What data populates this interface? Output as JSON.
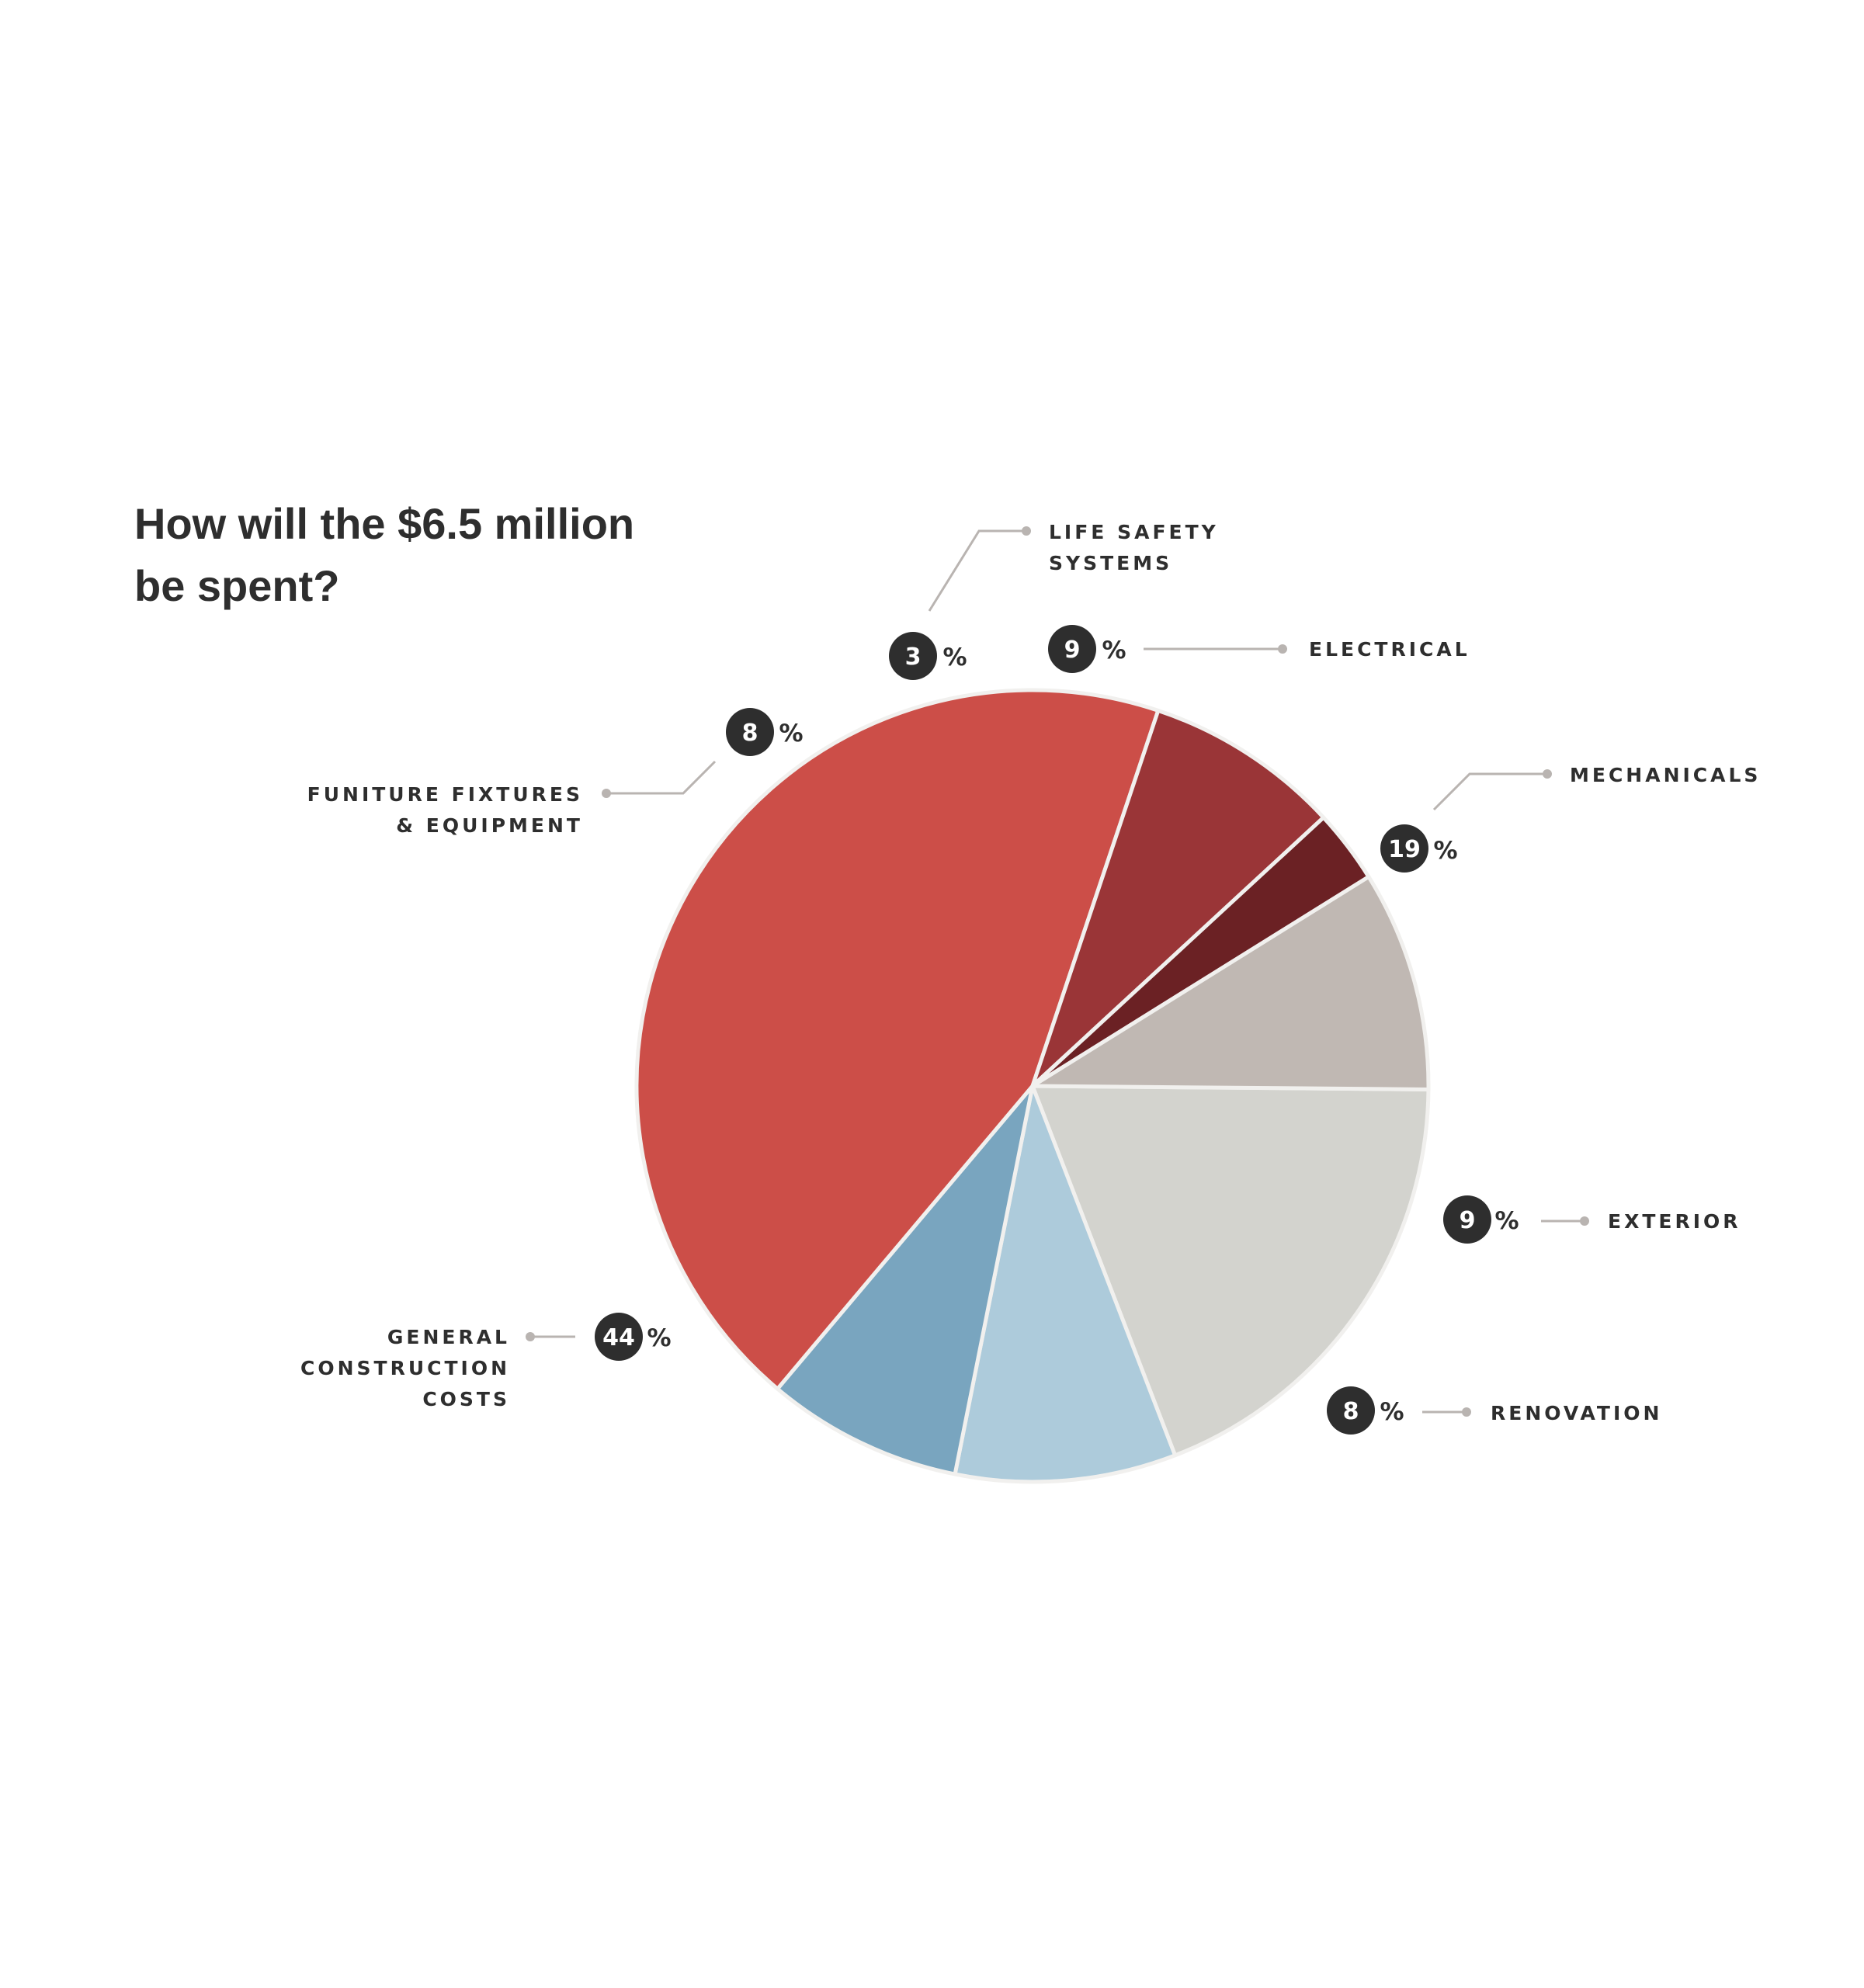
{
  "chart_data": {
    "type": "pie",
    "title": "How will the $6.5 million be spent?",
    "title_lines": [
      "How will the $6.5 million",
      "be spent?"
    ],
    "unit": "%",
    "slices": [
      {
        "name": "Mechanicals",
        "label_lines": [
          "MECHANICALS"
        ],
        "value": 19,
        "display": "19",
        "color": "#d3d3ce"
      },
      {
        "name": "Exterior",
        "label_lines": [
          "EXTERIOR"
        ],
        "value": 9,
        "display": "9",
        "color": "#adcbdb"
      },
      {
        "name": "Renovation",
        "label_lines": [
          "RENOVATION"
        ],
        "value": 8,
        "display": "8",
        "color": "#79a5bf"
      },
      {
        "name": "General Construction Costs",
        "label_lines": [
          "GENERAL",
          "CONSTRUCTION",
          "COSTS"
        ],
        "value": 44,
        "display": "44",
        "color": "#cc4e48"
      },
      {
        "name": "Funiture Fixtures & Equipment",
        "label_lines": [
          "FUNITURE FIXTURES",
          "& EQUIPMENT"
        ],
        "value": 8,
        "display": "8",
        "color": "#9a3537"
      },
      {
        "name": "Life Safety Systems",
        "label_lines": [
          "LIFE SAFETY",
          "SYSTEMS"
        ],
        "value": 3,
        "display": "3",
        "color": "#6b2124"
      },
      {
        "name": "Electrical",
        "label_lines": [
          "ELECTRICAL"
        ],
        "value": 9,
        "display": "9",
        "color": "#c0b8b3"
      }
    ],
    "badge_color": "#2e2e2e",
    "leader_color": "#b9b4b1",
    "legend": "callouts"
  }
}
